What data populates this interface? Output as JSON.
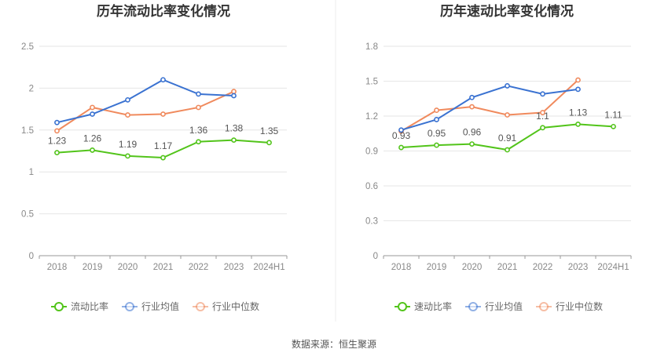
{
  "source": "数据来源：恒生聚源",
  "colors": {
    "primary": "#52c41a",
    "avg": "#3a72d1",
    "median": "#f08a5d"
  },
  "chart_data": [
    {
      "type": "line",
      "title": "历年流动比率变化情况",
      "categories": [
        "2018",
        "2019",
        "2020",
        "2021",
        "2022",
        "2023",
        "2024H1"
      ],
      "ylim": [
        0,
        2.5
      ],
      "yticks": [
        "0",
        "0.5",
        "1",
        "1.5",
        "2",
        "2.5"
      ],
      "ytick_values": [
        0,
        0.5,
        1,
        1.5,
        2,
        2.5
      ],
      "grid": true,
      "legend_position": "bottom",
      "series": [
        {
          "name": "流动比率",
          "color": "#52c41a",
          "labels": true,
          "values": [
            1.23,
            1.26,
            1.19,
            1.17,
            1.36,
            1.38,
            1.35
          ]
        },
        {
          "name": "行业均值",
          "color": "#3a72d1",
          "labels": false,
          "values": [
            1.59,
            1.69,
            1.86,
            2.1,
            1.93,
            1.91,
            null
          ]
        },
        {
          "name": "行业中位数",
          "color": "#f08a5d",
          "labels": false,
          "values": [
            1.49,
            1.77,
            1.68,
            1.69,
            1.77,
            1.96,
            null
          ]
        }
      ]
    },
    {
      "type": "line",
      "title": "历年速动比率变化情况",
      "categories": [
        "2018",
        "2019",
        "2020",
        "2021",
        "2022",
        "2023",
        "2024H1"
      ],
      "ylim": [
        0,
        1.8
      ],
      "yticks": [
        "0",
        "0.3",
        "0.6",
        "0.9",
        "1.2",
        "1.5",
        "1.8"
      ],
      "ytick_values": [
        0,
        0.3,
        0.6,
        0.9,
        1.2,
        1.5,
        1.8
      ],
      "grid": true,
      "legend_position": "bottom",
      "series": [
        {
          "name": "速动比率",
          "color": "#52c41a",
          "labels": true,
          "values": [
            0.93,
            0.95,
            0.96,
            0.91,
            1.1,
            1.13,
            1.11
          ]
        },
        {
          "name": "行业均值",
          "color": "#3a72d1",
          "labels": false,
          "values": [
            1.08,
            1.17,
            1.36,
            1.46,
            1.39,
            1.43,
            null
          ]
        },
        {
          "name": "行业中位数",
          "color": "#f08a5d",
          "labels": false,
          "values": [
            1.07,
            1.25,
            1.28,
            1.21,
            1.23,
            1.51,
            null
          ]
        }
      ]
    }
  ]
}
